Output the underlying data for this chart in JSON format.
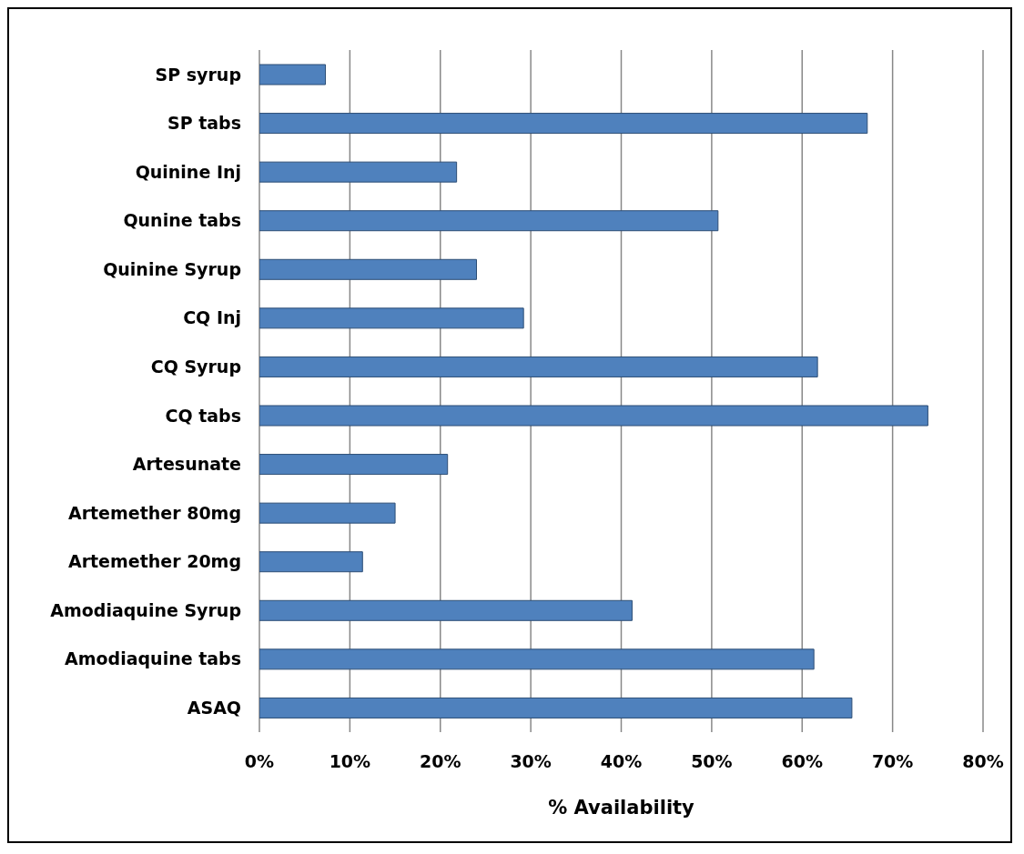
{
  "chart_data": {
    "type": "bar",
    "orientation": "horizontal",
    "xlabel": "% Availability",
    "categories": [
      "SP syrup",
      "SP tabs",
      "Quinine Inj",
      "Qunine tabs",
      "Quinine Syrup",
      "CQ Inj",
      "CQ Syrup",
      "CQ tabs",
      "Artesunate",
      "Artemether 80mg",
      "Artemether 20mg",
      "Amodiaquine Syrup",
      "Amodiaquine tabs",
      "ASAQ"
    ],
    "values": [
      7.3,
      67.2,
      21.8,
      50.7,
      24.0,
      29.2,
      61.7,
      73.9,
      20.8,
      15.0,
      11.4,
      41.2,
      61.3,
      65.5
    ],
    "color": "#4f81bd",
    "xlim": [
      0,
      80
    ],
    "xticks": [
      {
        "value": 0,
        "label": "0%"
      },
      {
        "value": 10,
        "label": "10%"
      },
      {
        "value": 20,
        "label": "20%"
      },
      {
        "value": 30,
        "label": "30%"
      },
      {
        "value": 40,
        "label": "40%"
      },
      {
        "value": 50,
        "label": "50%"
      },
      {
        "value": 60,
        "label": "60%"
      },
      {
        "value": 70,
        "label": "70%"
      },
      {
        "value": 80,
        "label": "80%"
      }
    ],
    "grid": "x",
    "legend": false
  }
}
